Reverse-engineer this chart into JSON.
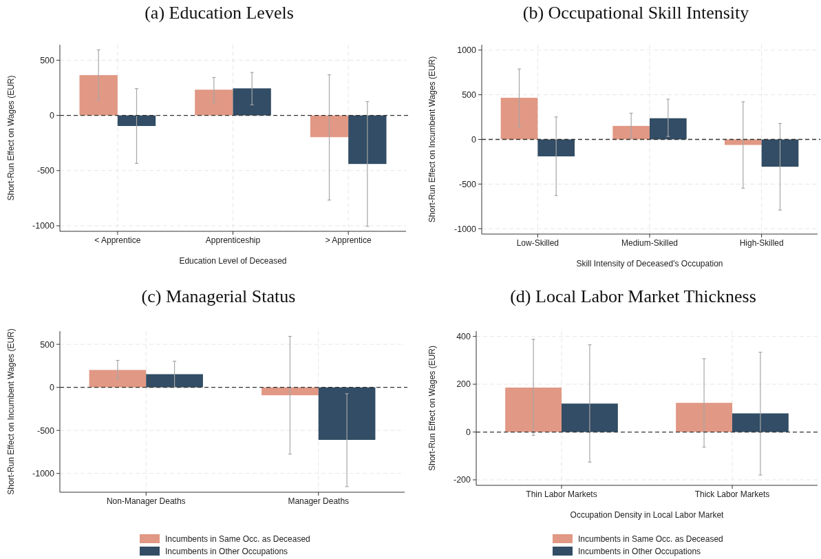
{
  "chart_data": [
    {
      "type": "bar",
      "title": "(a) Education Levels",
      "xlabel": "Education Level of Deceased",
      "ylabel": "Short-Run Effect on Wages (EUR)",
      "categories": [
        "< Apprentice",
        "Apprenticeship",
        "> Apprentice"
      ],
      "series": [
        {
          "color": "#e19884",
          "values": [
            365,
            233,
            -197
          ],
          "errors": [
            [
              142,
              594
            ],
            [
              118,
              344
            ],
            [
              -767,
              368
            ]
          ]
        },
        {
          "color": "#324d65",
          "values": [
            -96,
            245,
            -440
          ],
          "errors": [
            [
              -435,
              243
            ],
            [
              96,
              389
            ],
            [
              -1005,
              125
            ]
          ]
        }
      ],
      "ylim": [
        -1050,
        640
      ],
      "yticks": [
        -1000,
        -500,
        0,
        500
      ],
      "grid": true,
      "legend": false,
      "ref_lines": [
        {
          "axis": "y",
          "value": 0,
          "line_style": "dashed",
          "color": "#333333"
        }
      ]
    },
    {
      "type": "bar",
      "title": "(b) Occupational Skill Intensity",
      "xlabel": "Skill Intensity of Deceased's Occupation",
      "ylabel": "Short-Run Effect on Incumbent Wages (EUR)",
      "categories": [
        "Low-Skilled",
        "Medium-Skilled",
        "High-Skilled"
      ],
      "series": [
        {
          "color": "#e19884",
          "values": [
            466,
            151,
            -62
          ],
          "errors": [
            [
              142,
              789
            ],
            [
              18,
              294
            ],
            [
              -546,
              421
            ]
          ]
        },
        {
          "color": "#324d65",
          "values": [
            -190,
            237,
            -306
          ],
          "errors": [
            [
              -629,
              252
            ],
            [
              33,
              451
            ],
            [
              -792,
              178
            ]
          ]
        }
      ],
      "ylim": [
        -1060,
        1060
      ],
      "yticks": [
        -1000,
        -500,
        0,
        500,
        1000
      ],
      "grid": true,
      "legend": false,
      "ref_lines": [
        {
          "axis": "y",
          "value": 0,
          "line_style": "dashed",
          "color": "#333333"
        }
      ]
    },
    {
      "type": "bar",
      "title": "(c) Managerial Status",
      "ylabel": "Short-Run Effect on Incumbent Wages (EUR)",
      "categories": [
        "Non-Manager Deaths",
        "Manager Deaths"
      ],
      "series": [
        {
          "name": "Incumbents in Same Occ. as Deceased",
          "color": "#e19884",
          "values": [
            202,
            -92
          ],
          "errors": [
            [
              101,
              313
            ],
            [
              -776,
              592
            ]
          ]
        },
        {
          "name": "Incumbents in Other Occupations",
          "color": "#324d65",
          "values": [
            153,
            -610
          ],
          "errors": [
            [
              3,
              304
            ],
            [
              -1153,
              -74
            ]
          ]
        }
      ],
      "ylim": [
        -1218,
        653
      ],
      "yticks": [
        -1000,
        -500,
        0,
        500
      ],
      "grid": true,
      "legend": "bottom",
      "ref_lines": [
        {
          "axis": "y",
          "value": 0,
          "line_style": "dashed",
          "color": "#333333"
        }
      ]
    },
    {
      "type": "bar",
      "title": "(d) Local Labor Market Thickness",
      "xlabel": "Occupation Density in Local Labor Market",
      "ylabel": "Short-Run Effect on Wages (EUR)",
      "categories": [
        "Thin Labor Markets",
        "Thick Labor Markets"
      ],
      "series": [
        {
          "name": "Incumbents in Same Occ. as Deceased",
          "color": "#e19884",
          "values": [
            186,
            122
          ],
          "errors": [
            [
              -14,
              388
            ],
            [
              -63,
              307
            ]
          ]
        },
        {
          "name": "Incumbents in Other Occupations",
          "color": "#324d65",
          "values": [
            119,
            78
          ],
          "errors": [
            [
              -126,
              365
            ],
            [
              -180,
              334
            ]
          ]
        }
      ],
      "ylim": [
        -223,
        422
      ],
      "yticks": [
        -200,
        0,
        200,
        400
      ],
      "grid": true,
      "legend": "bottom",
      "ref_lines": [
        {
          "axis": "y",
          "value": 0,
          "line_style": "dashed",
          "color": "#333333"
        }
      ]
    }
  ]
}
